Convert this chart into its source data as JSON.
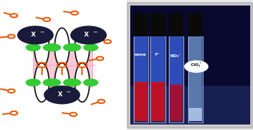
{
  "fig_width": 3.67,
  "fig_height": 1.89,
  "dpi": 100,
  "bg_color": "#e8e8e8",
  "left_bg": "#ffffff",
  "right_border": "#cccccc",
  "right_bg": "#0a0a44",
  "orange_color": "#ee5500",
  "green_color": "#33cc33",
  "dark_circle_color": "#1a1a3a",
  "pink_fill": "#f8c0d0",
  "vial_bg_blue": "#1a1a88",
  "vial_glass": "#8899cc",
  "vial_cap": "#0a0a0a",
  "vial_red": "#cc1133",
  "vial_blue_glow": "#4466dd",
  "vial_clear": "#aabbee",
  "label_white_bg": "#ffffff",
  "label_text_dark": "#111111",
  "label_text_white": "#ffffff",
  "vial_labels": [
    "none",
    "F⁻",
    "NO₃⁻",
    "ClO₄⁻"
  ]
}
